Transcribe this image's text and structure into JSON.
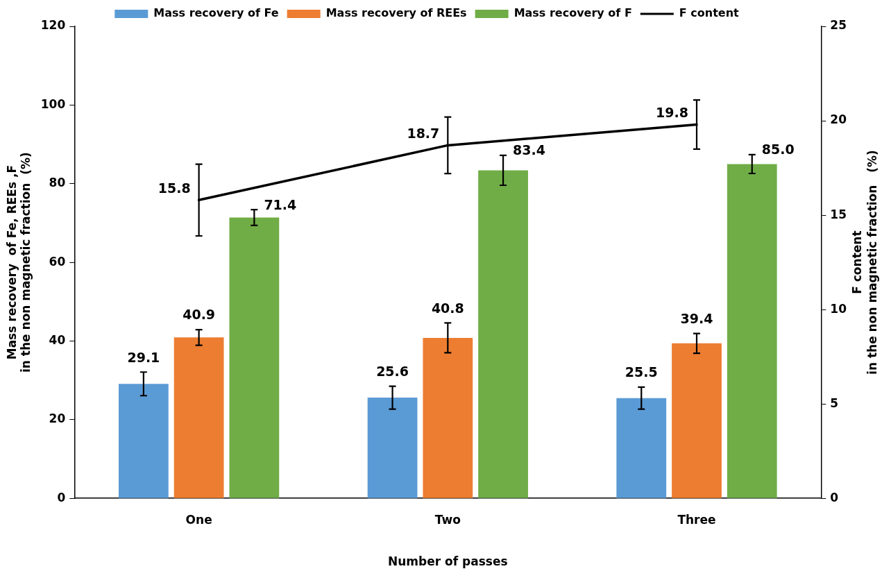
{
  "chart_data": {
    "type": "bar",
    "xlabel": "Number of passes",
    "ylabel": "Mass recovery  of Fe, REEs ,F\nin the non magnetic fraction  (%)",
    "y2label": "F content\nin the non magnetic fraction   (%)",
    "categories": [
      "One",
      "Two",
      "Three"
    ],
    "series": [
      {
        "name": "Mass recovery of Fe",
        "color": "#5b9bd5",
        "values": [
          29.1,
          25.6,
          25.5
        ],
        "value_labels": [
          "29.1",
          "25.6",
          "25.5"
        ],
        "errors": [
          3.0,
          2.9,
          2.8
        ]
      },
      {
        "name": "Mass recovery of REEs",
        "color": "#ed7d31",
        "values": [
          40.9,
          40.8,
          39.4
        ],
        "value_labels": [
          "40.9",
          "40.8",
          "39.4"
        ],
        "errors": [
          2.0,
          3.8,
          2.5
        ]
      },
      {
        "name": "Mass recovery of F",
        "color": "#70ad47",
        "values": [
          71.4,
          83.4,
          85.0
        ],
        "value_labels": [
          "71.4",
          "83.4",
          "85.0"
        ],
        "errors": [
          2.0,
          3.8,
          2.4
        ]
      },
      {
        "name": "F content",
        "type": "line",
        "axis": "y2",
        "color": "#000000",
        "values": [
          15.8,
          18.7,
          19.8
        ],
        "value_labels": [
          "15.8",
          "18.7",
          "19.8"
        ],
        "errors": [
          1.9,
          1.5,
          1.3
        ]
      }
    ],
    "ylim": [
      0,
      120
    ],
    "yticks": [
      0,
      20,
      40,
      60,
      80,
      100,
      120
    ],
    "y2lim": [
      0,
      25
    ],
    "y2ticks": [
      0,
      5,
      10,
      15,
      20,
      25
    ],
    "legend": "top",
    "marker": "none"
  }
}
